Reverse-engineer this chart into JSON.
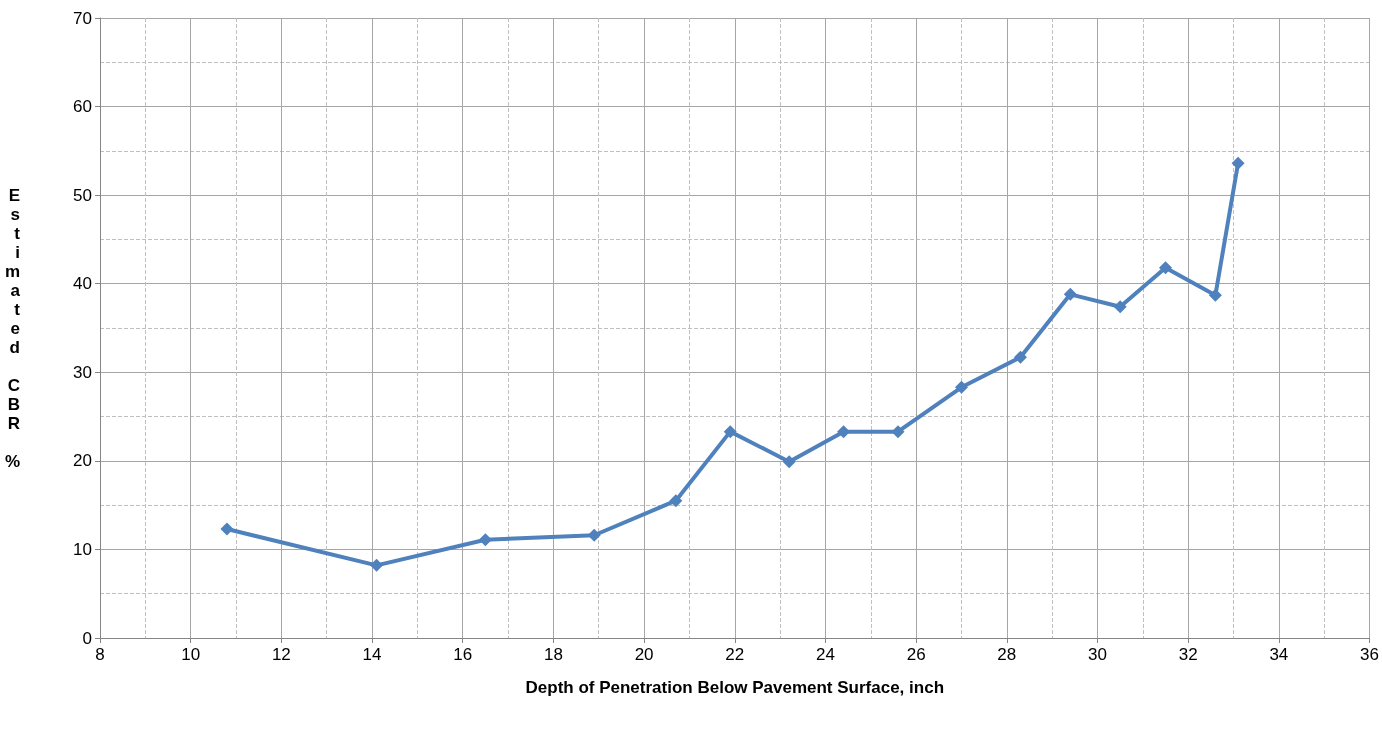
{
  "chart_data": {
    "type": "line",
    "xlabel": "Depth of Penetration Below Pavement Surface, inch",
    "ylabel": "Estimated CBR %",
    "series": [
      {
        "color": "#4f81bd",
        "x": [
          10.8,
          14.1,
          16.5,
          18.9,
          20.7,
          21.9,
          23.2,
          24.4,
          25.6,
          27.0,
          28.3,
          29.4,
          30.5,
          31.5,
          32.6,
          33.1
        ],
        "values": [
          12.3,
          8.2,
          11.1,
          11.6,
          15.5,
          23.3,
          19.9,
          23.3,
          23.3,
          28.3,
          31.7,
          38.8,
          37.4,
          41.8,
          38.7,
          53.6
        ]
      }
    ],
    "xlim": [
      8,
      36
    ],
    "xticks": [
      8,
      10,
      12,
      14,
      16,
      18,
      20,
      22,
      24,
      26,
      28,
      30,
      32,
      34,
      36
    ],
    "ylim": [
      0,
      70
    ],
    "yticks": [
      0,
      10,
      20,
      30,
      40,
      50,
      60,
      70
    ],
    "grid": true,
    "marker": "diamond",
    "line_style": "solid"
  }
}
